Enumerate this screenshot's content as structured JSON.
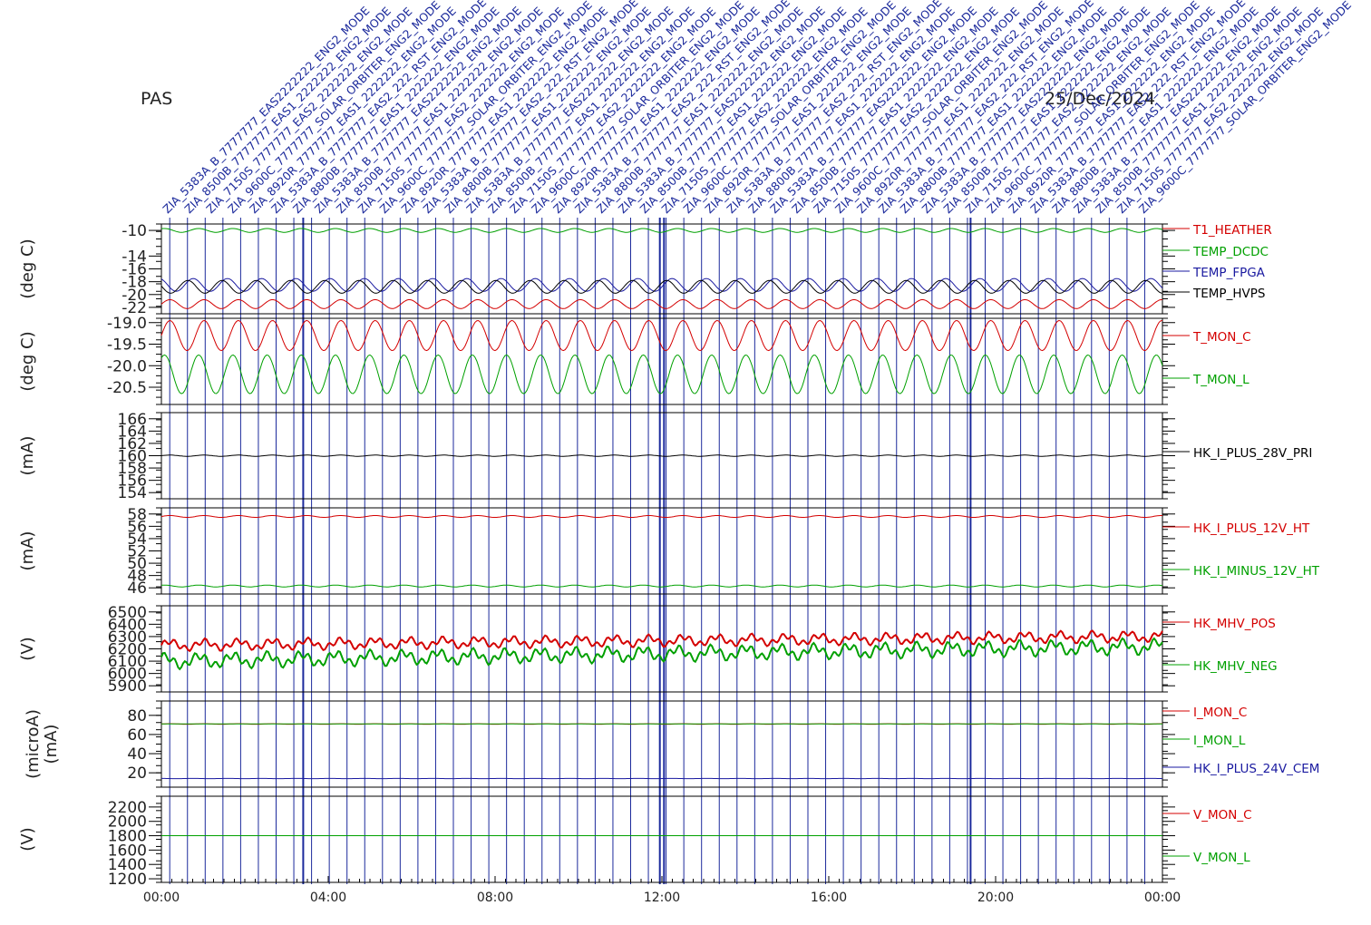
{
  "header": {
    "instrument": "PAS",
    "date": "25/Dec/2024"
  },
  "colors": {
    "red": "#d40000",
    "green": "#00a000",
    "blue": "#1a1aa0",
    "black": "#000000",
    "event": "#1c2a9c"
  },
  "event_labels": [
    "ZIA_5383A_B_7777777_EAS2222222_ENG2_MODE",
    "ZIA_8500B_7777777_EAS1_2222222_ENG2_MODE",
    "ZIA_7150S_7777777_EAS2_2222222_ENG2_MODE",
    "ZIA_9600C_7777777_SOLAR_ORBITER_ENG2_MODE",
    "ZIA_8920R_7777777_EAS1_2222222_ENG2_MODE",
    "ZIA_5383A_B_7777777_EAS2_222_RST_ENG2_MODE",
    "ZIA_8800B_7777777_EAS1_2222222_ENG2_MODE"
  ],
  "chart_data": {
    "type": "line",
    "x_ticks": [
      "00:00",
      "04:00",
      "08:00",
      "12:00",
      "16:00",
      "20:00",
      "00:00"
    ],
    "x_range_hours": [
      0,
      24
    ],
    "panels": [
      {
        "ylabel": "(deg C)",
        "yticks": [
          "-10",
          "-14",
          "-16",
          "-18",
          "-20",
          "-22"
        ],
        "ylim": [
          -23,
          -9
        ],
        "series": [
          {
            "name": "T1_HEATHER",
            "color": "red",
            "base": -21.5,
            "amp": 0.7
          },
          {
            "name": "TEMP_DCDC",
            "color": "green",
            "base": -10,
            "amp": 0.3
          },
          {
            "name": "TEMP_FPGA",
            "color": "blue",
            "base": -18.5,
            "amp": 1.0
          },
          {
            "name": "TEMP_HVPS",
            "color": "black",
            "base": -18.8,
            "amp": 1.0
          }
        ]
      },
      {
        "ylabel": "(deg C)",
        "yticks": [
          "-19.0",
          "-19.5",
          "-20.0",
          "-20.5"
        ],
        "ylim": [
          -20.9,
          -18.9
        ],
        "series": [
          {
            "name": "T_MON_C",
            "color": "red",
            "base": -19.3,
            "amp": 0.35
          },
          {
            "name": "T_MON_L",
            "color": "green",
            "base": -20.2,
            "amp": 0.45
          }
        ]
      },
      {
        "ylabel": "(mA)",
        "yticks": [
          "166",
          "164",
          "162",
          "160",
          "158",
          "156",
          "154"
        ],
        "ylim": [
          153,
          167
        ],
        "series": [
          {
            "name": "HK_I_PLUS_28V_PRI",
            "color": "black",
            "base": 160,
            "amp": 0.1
          }
        ]
      },
      {
        "ylabel": "(mA)",
        "yticks": [
          "58",
          "56",
          "54",
          "52",
          "50",
          "48",
          "46"
        ],
        "ylim": [
          45,
          59
        ],
        "series": [
          {
            "name": "HK_I_PLUS_12V_HT",
            "color": "red",
            "base": 57.6,
            "amp": 0.15
          },
          {
            "name": "HK_I_MINUS_12V_HT",
            "color": "green",
            "base": 46.3,
            "amp": 0.15
          }
        ]
      },
      {
        "ylabel": "(V)",
        "yticks": [
          "6500",
          "6400",
          "6300",
          "6200",
          "6100",
          "6000",
          "5900"
        ],
        "ylim": [
          5850,
          6550
        ],
        "series": [
          {
            "name": "HK_MHV_POS",
            "color": "red",
            "base": 6230,
            "amp": 30
          },
          {
            "name": "HK_MHV_NEG",
            "color": "green",
            "base": 6100,
            "amp": 40
          }
        ]
      },
      {
        "ylabel": "(microA)",
        "ylabel2": "(mA)",
        "yticks": [
          "80",
          "60",
          "40",
          "20"
        ],
        "ylim": [
          5,
          95
        ],
        "series": [
          {
            "name": "I_MON_C",
            "color": "red",
            "base": 71,
            "amp": 0.3
          },
          {
            "name": "I_MON_L",
            "color": "green",
            "base": 71,
            "amp": 0.0
          },
          {
            "name": "HK_I_PLUS_24V_CEM",
            "color": "blue",
            "base": 14,
            "amp": 0.1
          }
        ]
      },
      {
        "ylabel": "(V)",
        "yticks": [
          "2200",
          "2000",
          "1800",
          "1600",
          "1400",
          "1200"
        ],
        "ylim": [
          1150,
          2350
        ],
        "series": [
          {
            "name": "V_MON_C",
            "color": "red",
            "base": 1800,
            "amp": 0.0
          },
          {
            "name": "V_MON_L",
            "color": "green",
            "base": 1800,
            "amp": 0.0
          }
        ]
      }
    ]
  }
}
